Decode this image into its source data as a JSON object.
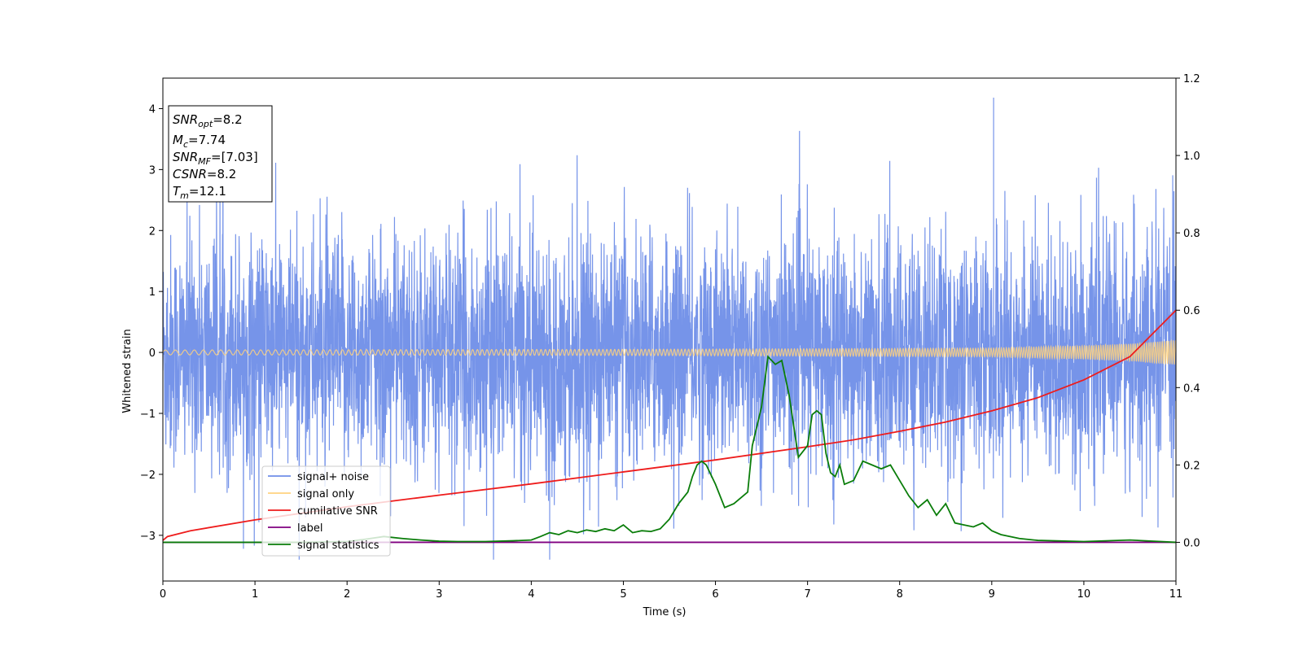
{
  "chart_data": {
    "type": "line",
    "xlabel": "Time (s)",
    "ylabel": "Whitened strain",
    "xlim": [
      0,
      11
    ],
    "ylim_left": [
      -3.75,
      4.5
    ],
    "ylim_right": [
      -0.1,
      1.2
    ],
    "xticks": [
      "0",
      "1",
      "2",
      "3",
      "4",
      "5",
      "6",
      "7",
      "8",
      "9",
      "10",
      "11"
    ],
    "yticks_left": [
      "−3",
      "−2",
      "−1",
      "0",
      "1",
      "2",
      "3",
      "4"
    ],
    "yticks_right": [
      "0.0",
      "0.2",
      "0.4",
      "0.6",
      "0.8",
      "1.0",
      "1.2"
    ],
    "grid": false,
    "legend": {
      "placement": "lower-left",
      "entries": [
        "signal+ noise",
        "signal only",
        "cumilative SNR",
        "label",
        "signal statistics"
      ]
    },
    "info_box": {
      "lines": [
        {
          "base": "SNR",
          "sub": "opt",
          "rest": "=8.2"
        },
        {
          "base": "M",
          "sub": "c",
          "rest": "=7.74"
        },
        {
          "base": "SNR",
          "sub": "MF",
          "rest": "=[7.03]"
        },
        {
          "base": "CSNR",
          "sub": "",
          "rest": "=8.2"
        },
        {
          "base": "T",
          "sub": "m",
          "rest": "=12.1"
        }
      ]
    },
    "series": [
      {
        "name": "signal+ noise",
        "axis": "left",
        "color": "#6f8ee8",
        "kind": "noise",
        "sigma": 0.95,
        "approx_range": [
          -3.4,
          4.2
        ],
        "notable_spikes": [
          {
            "x": 9.02,
            "y": 4.18
          },
          {
            "x": 4.2,
            "y": -3.4
          }
        ]
      },
      {
        "name": "signal only",
        "axis": "left",
        "color": "#ffd27f",
        "kind": "chirp",
        "amplitude_points": {
          "x": [
            0,
            5,
            9,
            10,
            10.5,
            11
          ],
          "y": [
            0.04,
            0.05,
            0.07,
            0.11,
            0.14,
            0.2
          ]
        }
      },
      {
        "name": "cumilative SNR",
        "axis": "right",
        "color": "#ee1c1c",
        "x": [
          0,
          0.05,
          0.3,
          1,
          2,
          3,
          4,
          5,
          6,
          7,
          7.5,
          8,
          8.5,
          9,
          9.5,
          10,
          10.5,
          11
        ],
        "y": [
          0.005,
          0.015,
          0.03,
          0.058,
          0.092,
          0.122,
          0.151,
          0.182,
          0.213,
          0.247,
          0.265,
          0.287,
          0.311,
          0.34,
          0.374,
          0.42,
          0.48,
          0.6
        ]
      },
      {
        "name": "label",
        "axis": "right",
        "color": "#800080",
        "x": [
          0,
          11
        ],
        "y": [
          0,
          0
        ]
      },
      {
        "name": "signal statistics",
        "axis": "right",
        "color": "#0a7d0a",
        "x": [
          0,
          0.5,
          1,
          1.5,
          2,
          2.2,
          2.4,
          2.6,
          2.8,
          3,
          3.2,
          3.5,
          3.8,
          4,
          4.1,
          4.2,
          4.3,
          4.4,
          4.5,
          4.6,
          4.7,
          4.8,
          4.9,
          5,
          5.1,
          5.2,
          5.3,
          5.4,
          5.5,
          5.6,
          5.7,
          5.75,
          5.8,
          5.85,
          5.9,
          6,
          6.1,
          6.2,
          6.3,
          6.35,
          6.4,
          6.5,
          6.57,
          6.65,
          6.72,
          6.8,
          6.9,
          7.0,
          7.05,
          7.1,
          7.15,
          7.2,
          7.25,
          7.3,
          7.35,
          7.4,
          7.5,
          7.6,
          7.7,
          7.8,
          7.9,
          8.0,
          8.1,
          8.2,
          8.3,
          8.4,
          8.5,
          8.6,
          8.7,
          8.8,
          8.9,
          9.0,
          9.1,
          9.3,
          9.5,
          10,
          10.5,
          11
        ],
        "y": [
          0.0,
          0.0,
          0.0,
          0.0,
          0.002,
          0.008,
          0.015,
          0.01,
          0.006,
          0.003,
          0.002,
          0.002,
          0.004,
          0.006,
          0.015,
          0.025,
          0.02,
          0.03,
          0.025,
          0.032,
          0.028,
          0.035,
          0.03,
          0.045,
          0.025,
          0.03,
          0.028,
          0.035,
          0.06,
          0.1,
          0.13,
          0.17,
          0.2,
          0.21,
          0.2,
          0.15,
          0.09,
          0.1,
          0.12,
          0.13,
          0.25,
          0.35,
          0.48,
          0.46,
          0.47,
          0.38,
          0.22,
          0.25,
          0.33,
          0.34,
          0.33,
          0.23,
          0.18,
          0.17,
          0.2,
          0.15,
          0.16,
          0.21,
          0.2,
          0.19,
          0.2,
          0.16,
          0.12,
          0.09,
          0.11,
          0.07,
          0.1,
          0.05,
          0.045,
          0.04,
          0.05,
          0.03,
          0.02,
          0.01,
          0.005,
          0.002,
          0.006,
          0.0
        ]
      }
    ]
  }
}
